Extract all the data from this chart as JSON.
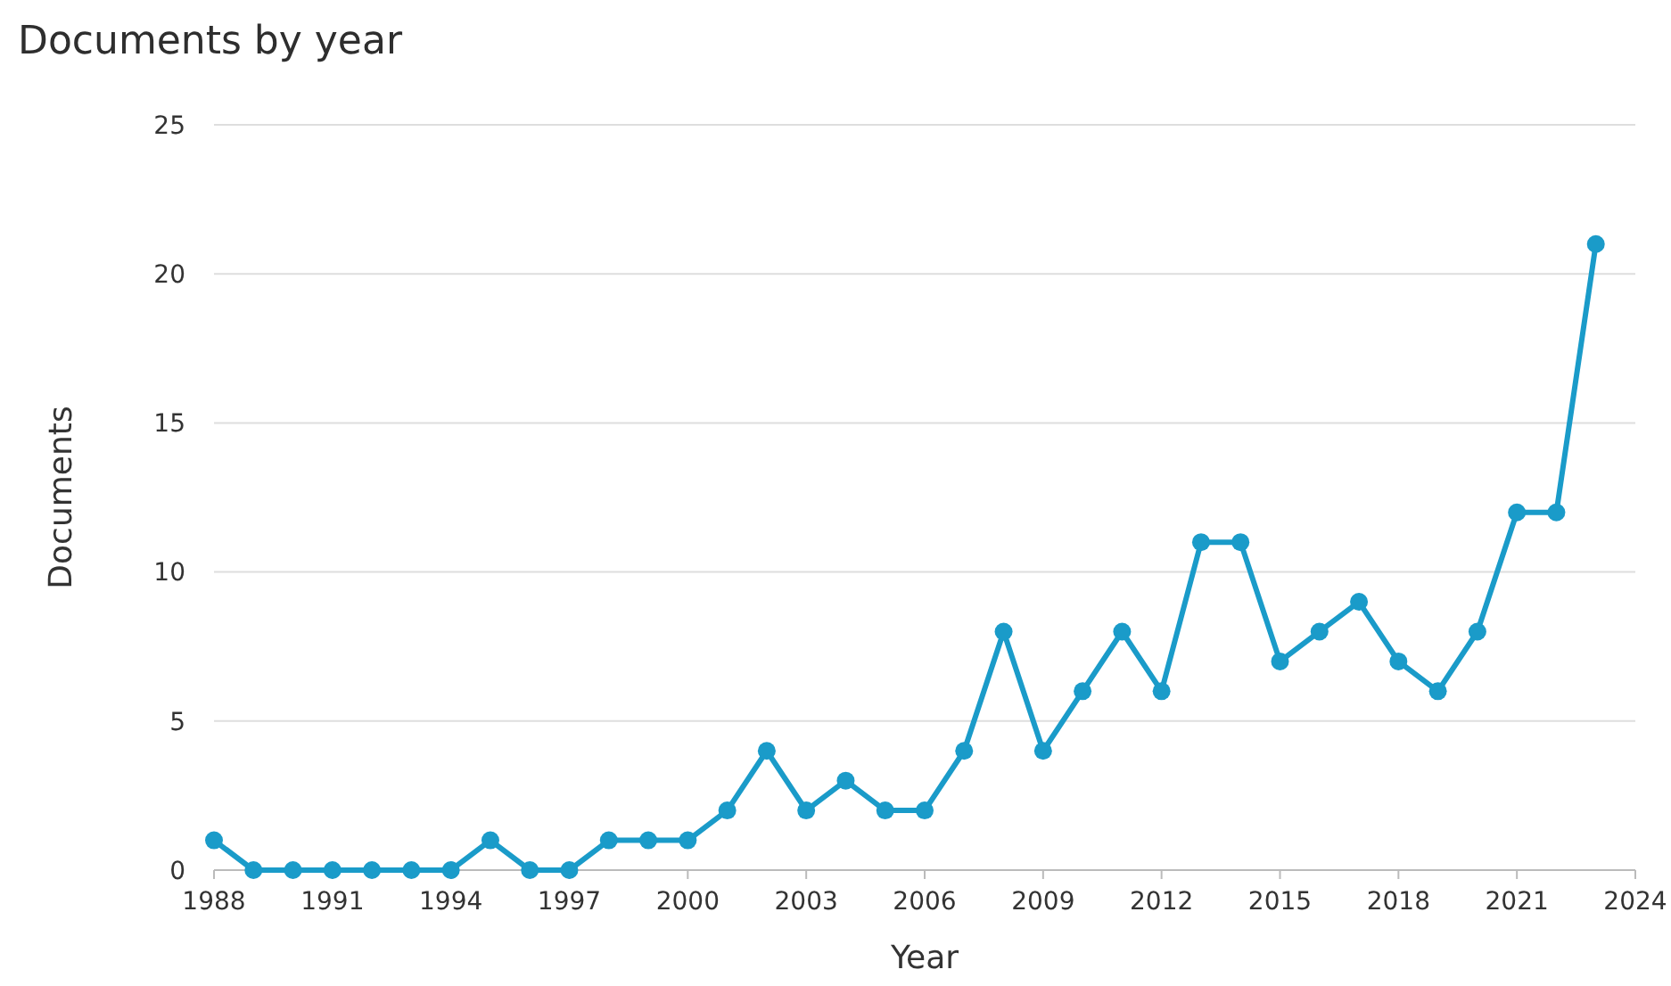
{
  "chart_data": {
    "type": "line",
    "title": "Documents by year",
    "xlabel": "Year",
    "ylabel": "Documents",
    "x": [
      1988,
      1989,
      1990,
      1991,
      1992,
      1993,
      1994,
      1995,
      1996,
      1997,
      1998,
      1999,
      2000,
      2001,
      2002,
      2003,
      2004,
      2005,
      2006,
      2007,
      2008,
      2009,
      2010,
      2011,
      2012,
      2013,
      2014,
      2015,
      2016,
      2017,
      2018,
      2019,
      2020,
      2021,
      2022,
      2023
    ],
    "series": [
      {
        "color": "#1a9bc9",
        "values": [
          1,
          0,
          0,
          0,
          0,
          0,
          0,
          1,
          0,
          0,
          1,
          1,
          1,
          2,
          4,
          2,
          3,
          2,
          2,
          4,
          8,
          4,
          6,
          8,
          6,
          11,
          11,
          7,
          8,
          9,
          7,
          6,
          8,
          12,
          12,
          21
        ]
      }
    ],
    "xlim": [
      1988,
      2024
    ],
    "xticks": [
      1988,
      1991,
      1994,
      1997,
      2000,
      2003,
      2006,
      2009,
      2012,
      2015,
      2018,
      2021,
      2024
    ],
    "ylim": [
      0,
      25
    ],
    "yticks": [
      0,
      5,
      10,
      15,
      20,
      25
    ],
    "grid": "y",
    "marker": "circle",
    "line_style": "solid"
  }
}
